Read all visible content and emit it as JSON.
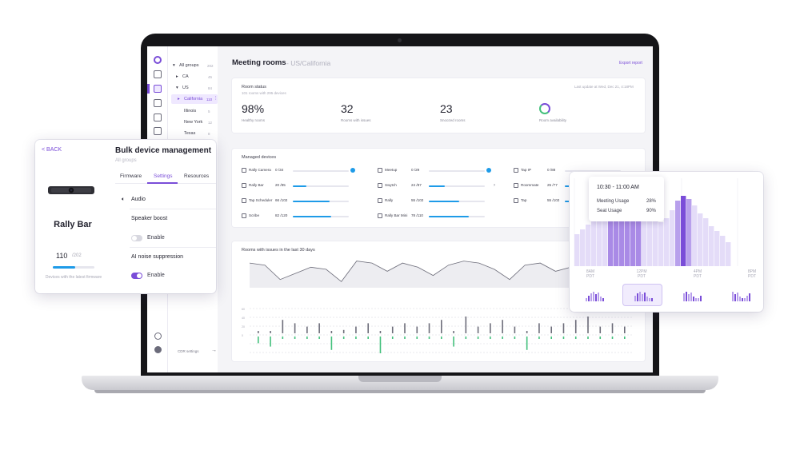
{
  "sidebar_tree": {
    "items": [
      {
        "label": "All groups",
        "count": "202"
      },
      {
        "label": "CA",
        "count": "45"
      },
      {
        "label": "US",
        "count": "84"
      },
      {
        "label": "California",
        "count": "110"
      },
      {
        "label": "Illinois",
        "count": "5"
      },
      {
        "label": "New York",
        "count": "12"
      },
      {
        "label": "Texas",
        "count": "8"
      }
    ],
    "footer_label": "CDR settings"
  },
  "header": {
    "title": "Meeting rooms",
    "subtitle": "- US/California",
    "export_label": "Export report"
  },
  "room_status": {
    "title": "Room status",
    "subtitle": "101 rooms with 295 devices",
    "last_update": "Last update at Wed, Dec 21, 4:18PM",
    "stats": [
      {
        "value": "98%",
        "label": "Healthy rooms"
      },
      {
        "value": "32",
        "label": "Rooms with issues"
      },
      {
        "value": "23",
        "label": "Snoozed rooms"
      },
      {
        "value": "",
        "label": "Room availability"
      }
    ]
  },
  "managed_devices": {
    "title": "Managed devices",
    "devices": [
      {
        "name": "Rally Camera",
        "value": "0",
        "total": "/34",
        "fraction": 0.0
      },
      {
        "name": "Rally Bar",
        "value": "20",
        "total": "/85",
        "fraction": 0.24
      },
      {
        "name": "Tap Scheduler",
        "value": "66",
        "total": "/102",
        "fraction": 0.65
      },
      {
        "name": "Scribe",
        "value": "82",
        "total": "/120",
        "fraction": 0.68
      },
      {
        "name": "Meetup",
        "value": "0",
        "total": "/29",
        "fraction": 0.0
      },
      {
        "name": "Swytch",
        "value": "24",
        "total": "/87",
        "fraction": 0.28
      },
      {
        "name": "Rally",
        "value": "55",
        "total": "/102",
        "fraction": 0.54
      },
      {
        "name": "Rally Bar Mini",
        "value": "78",
        "total": "/110",
        "fraction": 0.71
      },
      {
        "name": "Tap IP",
        "value": "0",
        "total": "/88",
        "fraction": 0.0
      },
      {
        "name": "Roommate",
        "value": "25",
        "total": "/77",
        "fraction": 0.32
      },
      {
        "name": "Tap",
        "value": "55",
        "total": "/102",
        "fraction": 0.54
      }
    ]
  },
  "issues_chart": {
    "title": "Rooms with issues in the last 30 days",
    "line_values": [
      60,
      55,
      20,
      35,
      50,
      45,
      15,
      65,
      60,
      40,
      60,
      50,
      30,
      55,
      65,
      60,
      45,
      20,
      55,
      60,
      40,
      50,
      65,
      60,
      45,
      55
    ],
    "bars": [
      -2,
      -3,
      4,
      3,
      2,
      3,
      -4,
      1,
      2,
      3,
      -5,
      2,
      3,
      2,
      3,
      4,
      -3,
      5,
      2,
      3,
      4,
      2,
      -4,
      3,
      2,
      3,
      4,
      5,
      2,
      3,
      2
    ],
    "y_ticks": [
      "60",
      "40",
      "20",
      "0"
    ]
  },
  "bulk_panel": {
    "back_label": "< BACK",
    "title": "Bulk device management",
    "subtitle": "All groups",
    "tabs": [
      "Firmware",
      "Settings",
      "Resources"
    ],
    "active_tab": "Settings",
    "device_name": "Rally Bar",
    "firmware_count": "110",
    "firmware_total": "/202",
    "firmware_fraction": 0.54,
    "firmware_caption": "Devices with the latest firmware",
    "section_audio": "Audio",
    "speaker_boost": {
      "label": "Speaker boost",
      "toggle_label": "Enable",
      "on": false
    },
    "ai_noise": {
      "label": "AI noise suppression",
      "toggle_label": "Enable",
      "on": true
    }
  },
  "usage_panel": {
    "tooltip": {
      "time": "10:30 - 11:00 AM",
      "rows": [
        {
          "label": "Meeting Usage",
          "value": "28%"
        },
        {
          "label": "Seat Usage",
          "value": "90%"
        }
      ]
    },
    "x_labels": [
      {
        "time": "8AM",
        "tz": "PDT"
      },
      {
        "time": "12PM",
        "tz": "PDT"
      },
      {
        "time": "4PM",
        "tz": "PDT"
      },
      {
        "time": "8PM",
        "tz": "PDT"
      }
    ]
  },
  "colors": {
    "accent": "#7a4dd8",
    "bar_blue": "#1e9be8",
    "good_green": "#43c07c"
  }
}
